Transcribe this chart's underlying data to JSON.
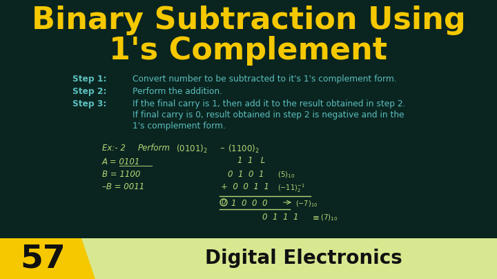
{
  "bg_color": "#0a2520",
  "title_line1": "Binary Subtraction Using",
  "title_line2": "1's Complement",
  "title_color": "#f5c800",
  "title_fontsize": 32,
  "step_label_color": "#5bbfbf",
  "step_text_color": "#5bbfbf",
  "step1_label": "Step 1:",
  "step1_text": "Convert number to be subtracted to it's 1's complement form.",
  "step2_label": "Step 2:",
  "step2_text": "Perform the addition.",
  "step3_label": "Step 3:",
  "step3_text1": "If the final carry is 1, then add it to the result obtained in step 2.",
  "step3_text2": "If final carry is 0, result obtained in step 2 is negative and in the",
  "step3_text3": "1's complement form.",
  "example_color": "#b8d878",
  "calc_color": "#b8d878",
  "number_text": "57",
  "banner_color": "#f5c800",
  "banner_text_color": "#111111",
  "ribbon_color": "#d8e890",
  "ribbon_text": "Digital Electronics"
}
